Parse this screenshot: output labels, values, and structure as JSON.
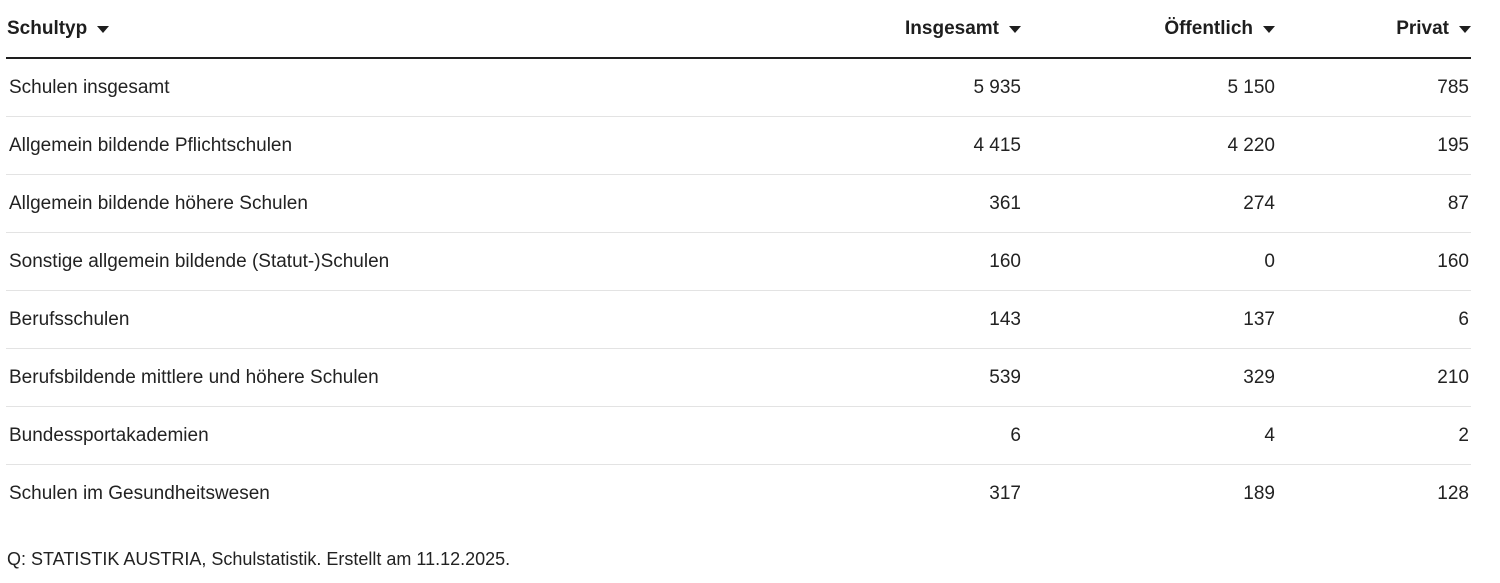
{
  "table": {
    "headers": {
      "type": "Schultyp",
      "total": "Insgesamt",
      "public": "Öffentlich",
      "private": "Privat"
    },
    "rows": [
      {
        "type": "Schulen insgesamt",
        "total": "5 935",
        "public": "5 150",
        "private": "785"
      },
      {
        "type": "Allgemein bildende Pflichtschulen",
        "total": "4 415",
        "public": "4 220",
        "private": "195"
      },
      {
        "type": "Allgemein bildende höhere Schulen",
        "total": "361",
        "public": "274",
        "private": "87"
      },
      {
        "type": "Sonstige allgemein bildende (Statut-)Schulen",
        "total": "160",
        "public": "0",
        "private": "160"
      },
      {
        "type": "Berufsschulen",
        "total": "143",
        "public": "137",
        "private": "6"
      },
      {
        "type": "Berufsbildende mittlere und höhere Schulen",
        "total": "539",
        "public": "329",
        "private": "210"
      },
      {
        "type": "Bundessportakademien",
        "total": "6",
        "public": "4",
        "private": "2"
      },
      {
        "type": "Schulen im Gesundheitswesen",
        "total": "317",
        "public": "189",
        "private": "128"
      }
    ]
  },
  "source": "Q: STATISTIK AUSTRIA, Schulstatistik. Erstellt am 11.12.2025.",
  "icons": {
    "sort": "caret-down-icon"
  },
  "colors": {
    "text": "#222222",
    "header_rule": "#1e1e1e",
    "row_divider": "#e3e3e3"
  }
}
